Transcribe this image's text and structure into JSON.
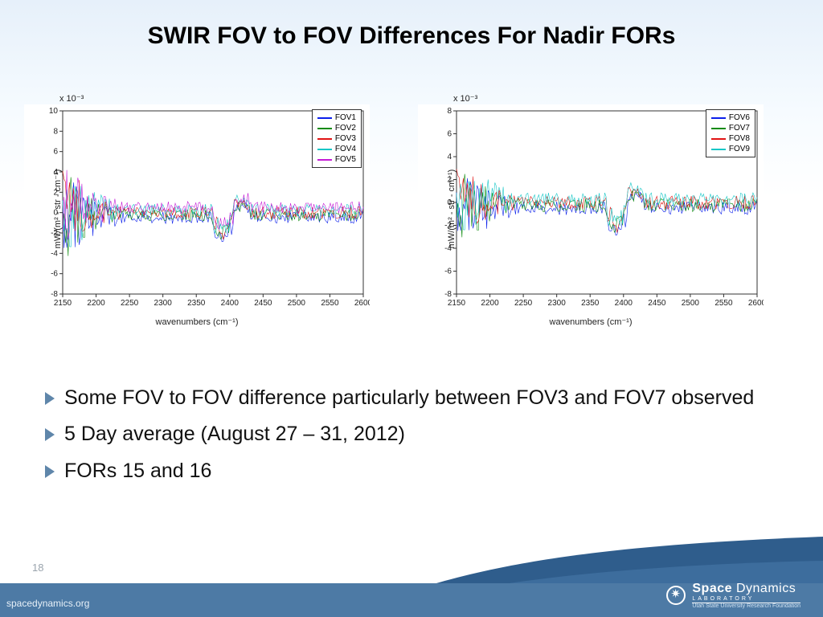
{
  "title": "SWIR FOV to FOV Differences For Nadir FORs",
  "page_number": "18",
  "footer": {
    "url": "spacedynamics.org",
    "org1": "Space ",
    "org1b": "Dynamics",
    "org2": "LABORATORY",
    "org3": "Utah State University Research Foundation"
  },
  "bullets": [
    "Some FOV to FOV difference particularly between FOV3 and FOV7 observed",
    "5 Day average (August 27 – 31, 2012)",
    "FORs 15 and 16"
  ],
  "chart_left": {
    "type": "line",
    "y_exponent": "x 10⁻³",
    "y_label": "mW/(m² - str - cm⁻¹)",
    "x_label": "wavenumbers (cm⁻¹)",
    "xlim": [
      2150,
      2600
    ],
    "xticks": [
      2150,
      2200,
      2250,
      2300,
      2350,
      2400,
      2450,
      2500,
      2550,
      2600
    ],
    "ylim": [
      -8,
      10
    ],
    "yticks": [
      -8,
      -6,
      -4,
      -2,
      0,
      2,
      4,
      6,
      8,
      10
    ],
    "background": "#ffffff",
    "axis_color": "#333333",
    "tick_font": 10,
    "label_font": 11,
    "line_width": 0.6,
    "series": [
      {
        "label": "FOV1",
        "color": "#0b1feb"
      },
      {
        "label": "FOV2",
        "color": "#0c8a0c"
      },
      {
        "label": "FOV3",
        "color": "#e11313"
      },
      {
        "label": "FOV4",
        "color": "#17c7c7"
      },
      {
        "label": "FOV5",
        "color": "#c51bd6"
      }
    ]
  },
  "chart_right": {
    "type": "line",
    "y_exponent": "x 10⁻³",
    "y_label": "mW/(m² - str - cm⁻¹)",
    "x_label": "wavenumbers (cm⁻¹)",
    "xlim": [
      2150,
      2600
    ],
    "xticks": [
      2150,
      2200,
      2250,
      2300,
      2350,
      2400,
      2450,
      2500,
      2550,
      2600
    ],
    "ylim": [
      -8,
      8
    ],
    "yticks": [
      -8,
      -6,
      -4,
      -2,
      0,
      2,
      4,
      6,
      8
    ],
    "background": "#ffffff",
    "axis_color": "#333333",
    "tick_font": 10,
    "label_font": 11,
    "line_width": 0.6,
    "series": [
      {
        "label": "FOV6",
        "color": "#0b1feb"
      },
      {
        "label": "FOV7",
        "color": "#0c8a0c"
      },
      {
        "label": "FOV8",
        "color": "#e11313"
      },
      {
        "label": "FOV9",
        "color": "#17c7c7"
      }
    ]
  }
}
